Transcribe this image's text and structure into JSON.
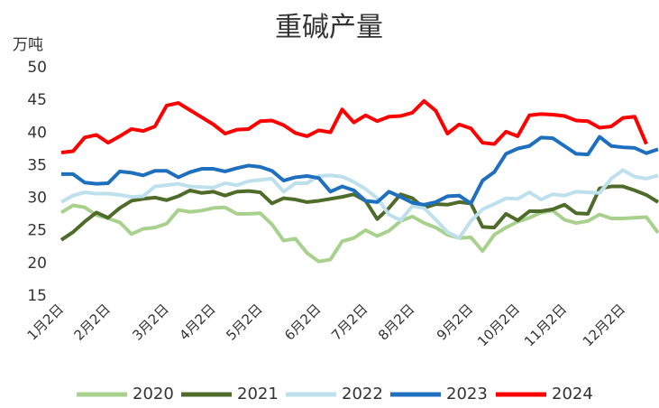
{
  "chart_data": {
    "type": "line",
    "title": "重碱产量",
    "y_unit": "万吨",
    "categories": [
      "1月2日",
      null,
      null,
      null,
      "2月2日",
      null,
      null,
      null,
      null,
      "3月2日",
      null,
      null,
      null,
      "4月2日",
      null,
      null,
      null,
      "5月2日",
      null,
      null,
      null,
      null,
      "6月2日",
      null,
      null,
      null,
      "7月2日",
      null,
      null,
      null,
      "8月2日",
      null,
      null,
      null,
      null,
      "9月2日",
      null,
      null,
      null,
      "10月2日",
      null,
      null,
      null,
      "11月2日",
      null,
      null,
      null,
      null,
      "12月2日",
      null,
      null,
      null
    ],
    "ylim": [
      15,
      50
    ],
    "yticks": [
      15,
      20,
      25,
      30,
      35,
      40,
      45,
      50
    ],
    "series": [
      {
        "name": "2020",
        "color": "#a9d18e",
        "values": [
          27.8,
          28.9,
          28.6,
          27.4,
          26.9,
          26.3,
          24.5,
          25.3,
          25.5,
          26.1,
          28.2,
          27.9,
          28.1,
          28.5,
          28.6,
          27.6,
          27.6,
          27.7,
          26,
          23.5,
          23.8,
          21.6,
          20.3,
          20.6,
          23.4,
          23.9,
          25.1,
          24.2,
          25,
          26.5,
          27.2,
          26.2,
          25.5,
          24.4,
          23.9,
          24,
          21.9,
          24.4,
          25.5,
          26.4,
          27,
          27.8,
          28.1,
          26.7,
          26.2,
          26.5,
          27.5,
          26.9,
          26.9,
          27,
          27.1,
          24.7
        ]
      },
      {
        "name": "2021",
        "color": "#4e6b2a",
        "values": [
          23.6,
          24.8,
          26.4,
          27.8,
          27,
          28.5,
          29.6,
          29.9,
          30.1,
          29.7,
          30.3,
          31.2,
          30.8,
          31,
          30.4,
          31,
          31.1,
          30.9,
          29.2,
          30,
          29.8,
          29.4,
          29.6,
          29.9,
          30.2,
          30.6,
          29.6,
          26.8,
          28.5,
          30.6,
          30,
          28.5,
          29.1,
          29,
          29.4,
          29.2,
          25.6,
          25.5,
          27.6,
          26.6,
          28,
          28,
          28.3,
          29,
          27.7,
          27.6,
          31.5,
          31.8,
          31.8,
          31.2,
          30.5,
          29.4
        ]
      },
      {
        "name": "2022",
        "color": "#bde0ec",
        "values": [
          29.4,
          30.4,
          30.9,
          30.7,
          30.7,
          30.5,
          30.2,
          30.3,
          31.8,
          32,
          32.2,
          31.8,
          31.7,
          31.6,
          32.3,
          32,
          32.6,
          32.8,
          33,
          31,
          32.3,
          32.3,
          33.4,
          33.5,
          33.3,
          32.5,
          31.4,
          30,
          27.5,
          26.6,
          28.8,
          28.5,
          26.7,
          24.8,
          23.9,
          26.5,
          28.3,
          29.1,
          30,
          29.9,
          30.9,
          29.8,
          30.6,
          30.4,
          31,
          30.9,
          30.8,
          33,
          34.3,
          33.3,
          33,
          33.5
        ]
      },
      {
        "name": "2023",
        "color": "#1f6fbf",
        "values": [
          33.7,
          33.7,
          32.4,
          32.2,
          32.3,
          34.1,
          33.9,
          33.5,
          34.2,
          34.2,
          33.2,
          34,
          34.5,
          34.5,
          34.1,
          34.6,
          35,
          34.8,
          34.2,
          32.7,
          33.2,
          33.4,
          33.1,
          31,
          31.8,
          31.2,
          29.6,
          29.4,
          31,
          30.2,
          29.3,
          29,
          29.4,
          30.3,
          30.4,
          29.2,
          32.7,
          34,
          36.8,
          37.6,
          38,
          39.3,
          39.2,
          38,
          36.8,
          36.7,
          39.4,
          38,
          37.8,
          37.7,
          36.9,
          37.5
        ]
      },
      {
        "name": "2024",
        "color": "#ff0000",
        "values": [
          37,
          37.2,
          39.3,
          39.7,
          38.5,
          39.5,
          40.6,
          40.3,
          41,
          44.2,
          44.6,
          43.5,
          42.4,
          41.3,
          39.9,
          40.5,
          40.6,
          41.8,
          41.9,
          41.2,
          40,
          39.5,
          40.4,
          40.1,
          43.6,
          41.6,
          42.7,
          41.8,
          42.5,
          42.6,
          43.1,
          44.9,
          43.4,
          39.9,
          41.3,
          40.7,
          38.5,
          38.3,
          40.2,
          39.5,
          42.7,
          42.9,
          42.8,
          42.6,
          41.9,
          41.8,
          40.8,
          41,
          42.3,
          42.5,
          38.3,
          null
        ]
      }
    ]
  }
}
